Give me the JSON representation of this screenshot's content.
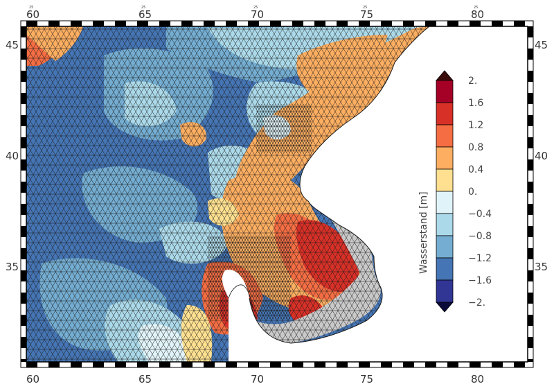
{
  "map": {
    "axes": {
      "x_ticks": [
        "60",
        "65",
        "70",
        "75",
        "80"
      ],
      "y_ticks": [
        "45",
        "40",
        "35"
      ],
      "tick_superscript": "25"
    },
    "colorbar": {
      "label": "Wasserstand [m]",
      "levels": [
        "2.",
        "1.6",
        "1.2",
        "0.8",
        "0.4",
        "0.",
        "−0.4",
        "−0.8",
        "−1.2",
        "−1.6",
        "−2."
      ],
      "colors": [
        "#3b0c0c",
        "#a50026",
        "#d73027",
        "#f46d43",
        "#fdae61",
        "#fee090",
        "#e0f3f8",
        "#abd9e9",
        "#74add1",
        "#4575b4",
        "#313695",
        "#0b0b3a"
      ]
    },
    "palette": {
      "dry_cell": "#c9c9c9",
      "land": "#ffffff",
      "mesh_line": "#1a1a1a"
    }
  }
}
